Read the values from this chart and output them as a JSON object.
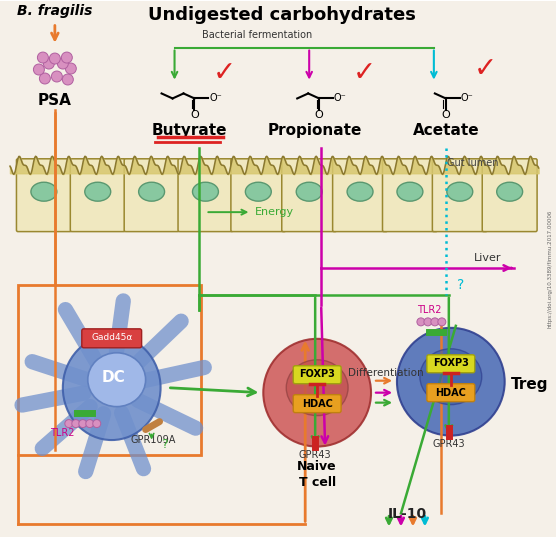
{
  "bg_color": "#f5f0e8",
  "title": "Undigested carbohydrates",
  "bfragilis_label": "B. fragilis",
  "psa_label": "PSA",
  "butyrate_label": "Butyrate",
  "propionate_label": "Propionate",
  "acetate_label": "Acetate",
  "bacterial_fermentation": "Bacterial fermentation",
  "energy_label": "Energy",
  "gut_lumen_label": "Gut lumen",
  "liver_label": "Liver",
  "dc_label": "DC",
  "treg_label": "Treg",
  "gpr43_label": "GPR43",
  "gpr109a_label": "GPR109A",
  "tlr2_label": "TLR2",
  "hdac_label": "HDAC",
  "foxp3_label": "FOXP3",
  "gadd45_label": "Gadd45α",
  "differentiation_label": "Differentiation",
  "il10_label": "IL-10",
  "doi_text": "https://doi.org/10.3389/fimmu.2017.00006",
  "colors": {
    "orange": "#E87A2D",
    "green": "#3aaa35",
    "magenta": "#cc00aa",
    "cyan": "#00bcd4",
    "red": "#dd2222",
    "nucleus_fill": "#88c8a0",
    "dc_color": "#7090cc",
    "gut_fill": "#f0e8c0"
  }
}
